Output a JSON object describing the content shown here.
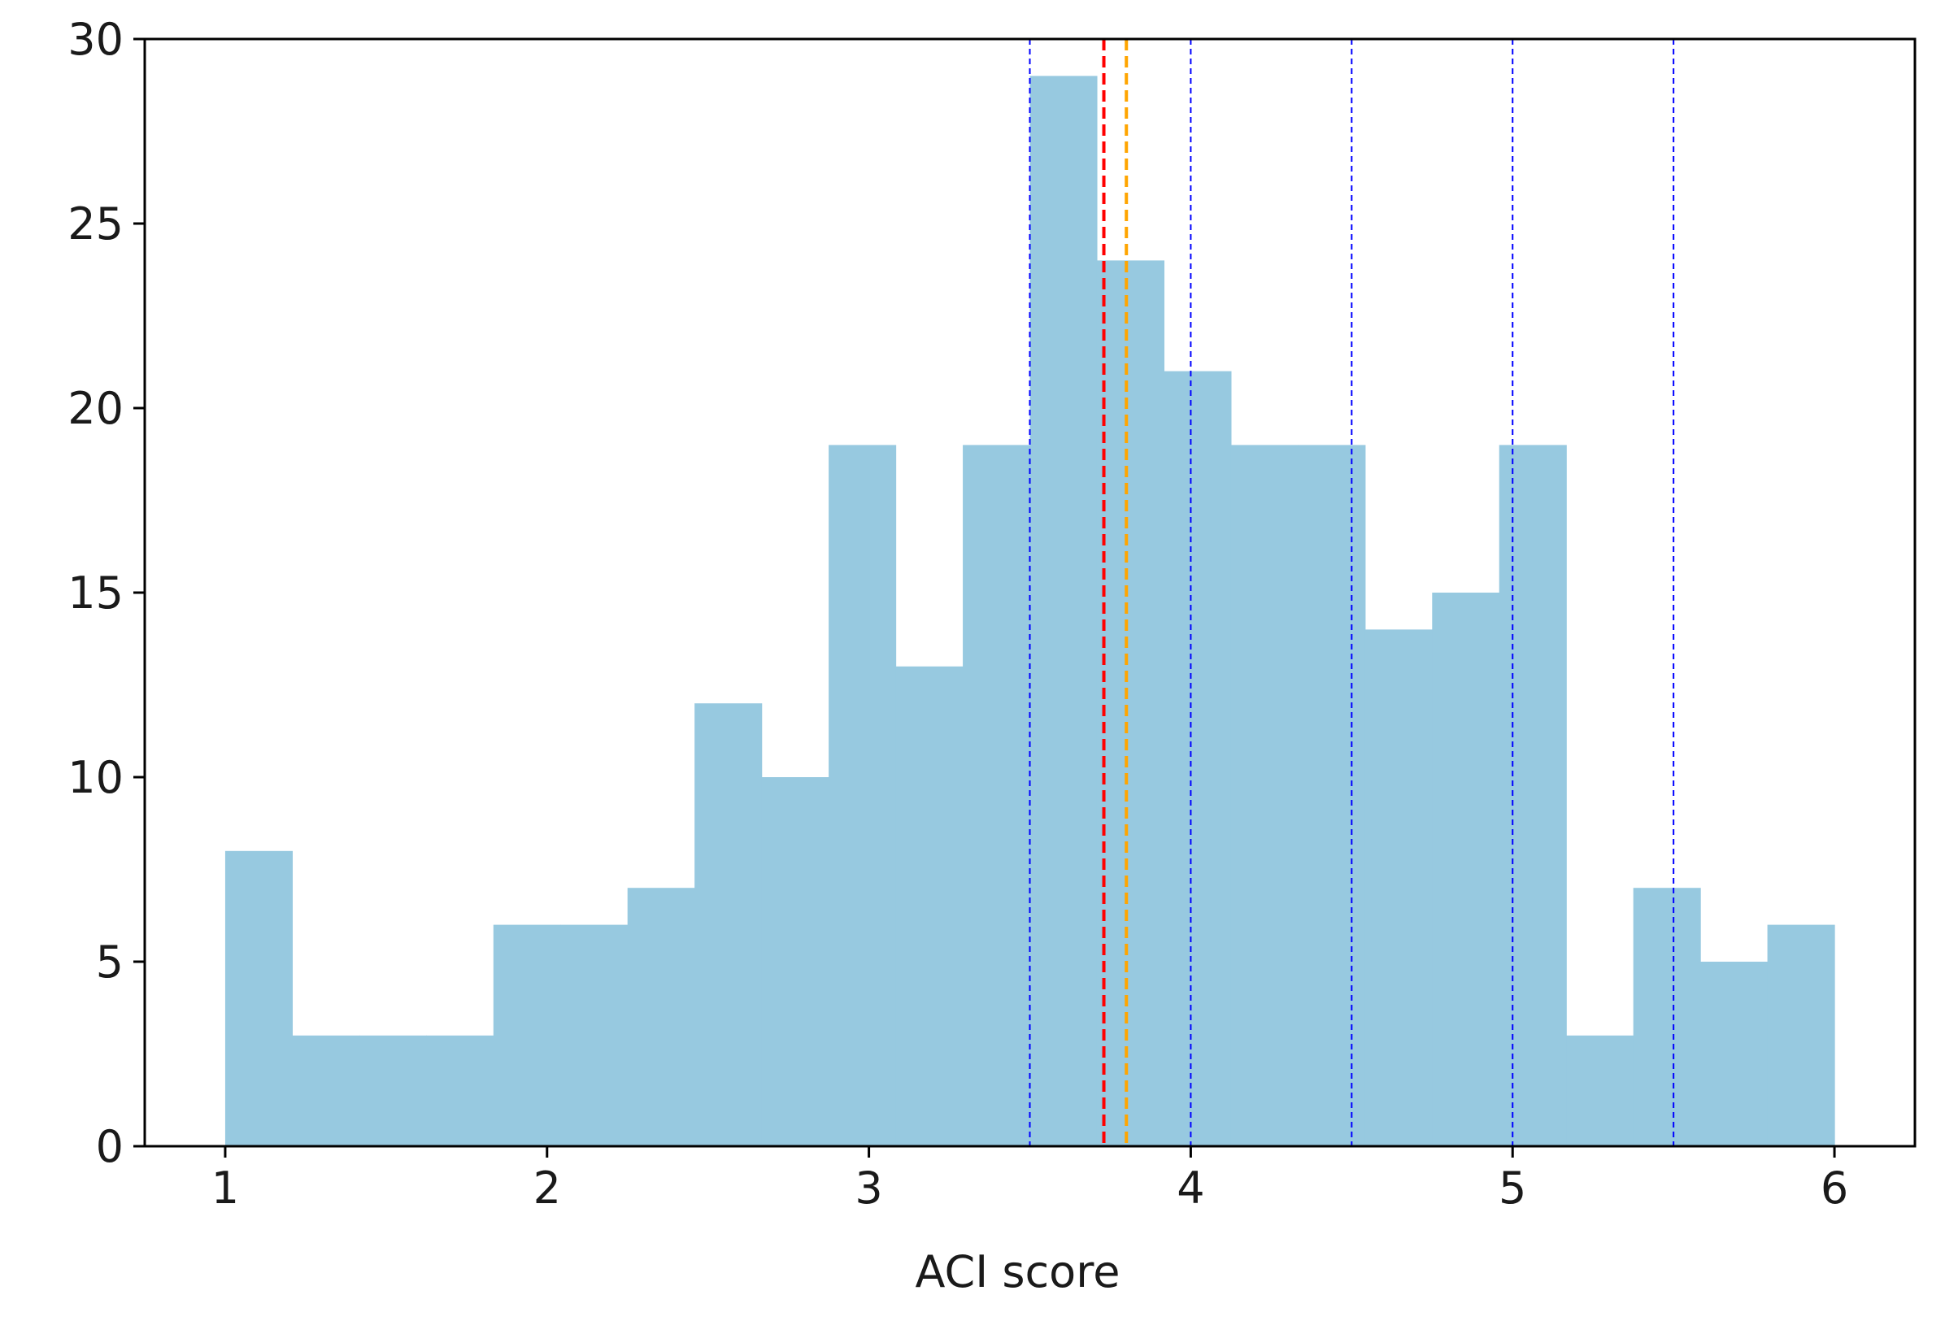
{
  "chart_data": {
    "type": "bar",
    "subtype": "histogram",
    "title": "",
    "xlabel": "ACI score",
    "ylabel": "",
    "xlim": [
      0.75,
      6.25
    ],
    "ylim": [
      0,
      30
    ],
    "xticks": [
      1,
      2,
      3,
      4,
      5,
      6
    ],
    "yticks": [
      0,
      5,
      10,
      15,
      20,
      25,
      30
    ],
    "bin_edges": [
      1.0,
      1.2083,
      1.4167,
      1.625,
      1.8333,
      2.0417,
      2.25,
      2.4583,
      2.6667,
      2.875,
      3.0833,
      3.2917,
      3.5,
      3.7083,
      3.9167,
      4.125,
      4.3333,
      4.5417,
      4.75,
      4.9583,
      5.1667,
      5.375,
      5.5833,
      5.7917,
      6.0
    ],
    "counts": [
      8,
      3,
      3,
      3,
      6,
      6,
      7,
      12,
      10,
      19,
      13,
      19,
      29,
      24,
      21,
      19,
      19,
      14,
      15,
      19,
      3,
      7,
      5,
      6
    ],
    "bar_color": "#97c9e0",
    "reference_lines": [
      {
        "x": 3.5,
        "color": "#0000ff",
        "style": "dotted"
      },
      {
        "x": 4.0,
        "color": "#0000ff",
        "style": "dotted"
      },
      {
        "x": 4.5,
        "color": "#0000ff",
        "style": "dotted"
      },
      {
        "x": 5.0,
        "color": "#0000ff",
        "style": "dotted"
      },
      {
        "x": 5.5,
        "color": "#0000ff",
        "style": "dotted"
      },
      {
        "x": 3.73,
        "color": "#ff0000",
        "style": "dashed"
      },
      {
        "x": 3.8,
        "color": "#ffa500",
        "style": "dashed"
      }
    ],
    "grid": false,
    "legend": "none"
  }
}
